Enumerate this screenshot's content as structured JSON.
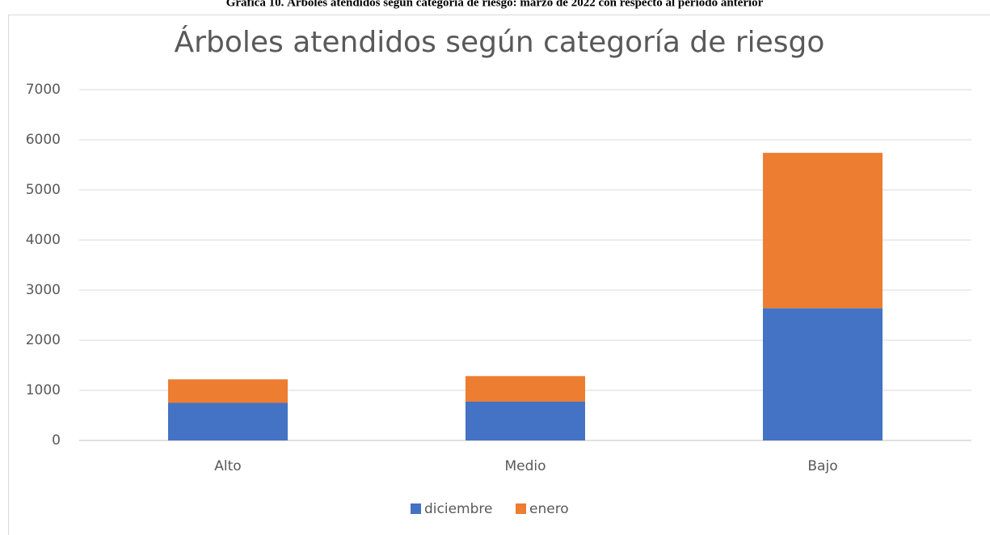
{
  "caption": "Gráfica 10. Árboles atendidos según categoría de riesgo: marzo de 2022 con respecto al periodo anterior",
  "chart_data": {
    "type": "stacked_bar",
    "title": "Árboles atendidos según categoría de riesgo",
    "categories": [
      "Alto",
      "Medio",
      "Bajo"
    ],
    "series": [
      {
        "name": "diciembre",
        "color": "#4472c4",
        "values": [
          750,
          775,
          2640
        ]
      },
      {
        "name": "enero",
        "color": "#ed7d31",
        "values": [
          470,
          510,
          3100
        ]
      }
    ],
    "ylim": [
      0,
      7000
    ],
    "yticks": [
      0,
      1000,
      2000,
      3000,
      4000,
      5000,
      6000,
      7000
    ],
    "grid": true,
    "legend": "bottom"
  }
}
